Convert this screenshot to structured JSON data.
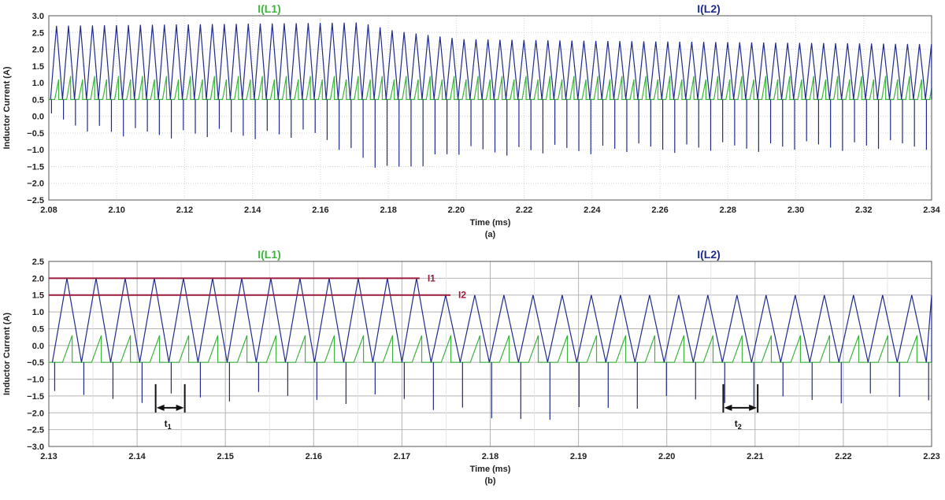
{
  "colors": {
    "L1": "#3db53d",
    "L2": "#1f2a8c",
    "threshold": "#9b1b3c",
    "grid": "#d6d6d6",
    "gridMajor": "#b5b5b5",
    "marker": "#111111"
  },
  "chart_data": [
    {
      "type": "line",
      "panel_label": "(a)",
      "xlabel": "Time (ms)",
      "ylabel": "Inductor Current (A)",
      "xlim": [
        2.08,
        2.34
      ],
      "ylim": [
        -2.5,
        3.0
      ],
      "xticks": [
        "2.08",
        "2.10",
        "2.12",
        "2.14",
        "2.16",
        "2.18",
        "2.20",
        "2.22",
        "2.24",
        "2.26",
        "2.28",
        "2.30",
        "2.32",
        "2.34"
      ],
      "yticks": [
        "3.0",
        "2.5",
        "2.0",
        "1.5",
        "1.0",
        "0.5",
        "0.0",
        "−0.5",
        "−1.0",
        "−1.5",
        "−2.0",
        "−2.5"
      ],
      "grid": "dotted",
      "legend": [
        {
          "name": "I(L1)",
          "color": "#3db53d"
        },
        {
          "name": "I(L2)",
          "color": "#1f2a8c"
        }
      ],
      "series": [
        {
          "name": "I(L1)",
          "shape": "sawtooth",
          "x_start": 2.0805,
          "period": 0.00353,
          "baseline": 0.5,
          "peak": [
            1.1,
            1.2
          ]
        },
        {
          "name": "I(L2)",
          "shape": "triangle",
          "x_start": 2.0805,
          "period": 0.00353,
          "baseline": 0.5,
          "peak_points": [
            [
              2.08,
              2.7
            ],
            [
              2.17,
              2.8
            ],
            [
              2.18,
              2.55
            ],
            [
              2.2,
              2.3
            ],
            [
              2.24,
              2.25
            ],
            [
              2.34,
              2.15
            ]
          ],
          "spike_min_points": [
            [
              2.08,
              0.1
            ],
            [
              2.1,
              -0.35
            ],
            [
              2.16,
              -0.4
            ],
            [
              2.18,
              -1.5
            ],
            [
              2.2,
              -0.9
            ],
            [
              2.26,
              -0.8
            ],
            [
              2.34,
              -0.7
            ]
          ]
        }
      ]
    },
    {
      "type": "line",
      "panel_label": "(b)",
      "xlabel": "Time (ms)",
      "ylabel": "Inductor Current (A)",
      "xlim": [
        2.13,
        2.23
      ],
      "ylim": [
        -3.0,
        2.5
      ],
      "xticks": [
        "2.13",
        "2.14",
        "2.15",
        "2.16",
        "2.17",
        "2.18",
        "2.19",
        "2.20",
        "2.21",
        "2.22",
        "2.23"
      ],
      "yticks": [
        "2.5",
        "2.0",
        "1.5",
        "1.0",
        "0.5",
        "0.0",
        "−0.5",
        "−1.0",
        "−1.5",
        "−2.0",
        "−2.5",
        "−3.0"
      ],
      "grid": "solid",
      "legend": [
        {
          "name": "I(L1)",
          "color": "#3db53d"
        },
        {
          "name": "I(L2)",
          "color": "#1f2a8c"
        }
      ],
      "series": [
        {
          "name": "I(L1)",
          "shape": "sawtooth",
          "x_start": 2.1304,
          "period": 0.0033,
          "baseline": -0.5,
          "peak": 0.3
        },
        {
          "name": "I(L2)",
          "shape": "triangle",
          "x_start": 2.1304,
          "period": 0.0033,
          "baseline": -0.5,
          "peak_before_x": 2.1735,
          "peak_high": 2.0,
          "peak_low": 1.5,
          "spike_min_points": [
            [
              2.13,
              -1.35
            ],
            [
              2.17,
              -1.4
            ],
            [
              2.18,
              -2.05
            ],
            [
              2.2,
              -1.5
            ],
            [
              2.23,
              -1.4
            ]
          ]
        }
      ],
      "annotations": [
        {
          "label": "I1",
          "y": 2.0,
          "x_from": 2.13,
          "x_to": 2.172
        },
        {
          "label": "I2",
          "y": 1.5,
          "x_from": 2.13,
          "x_to": 2.1755
        },
        {
          "label": "t",
          "subscript": "1",
          "x_from": 2.1421,
          "x_to": 2.1454,
          "y": -1.85
        },
        {
          "label": "t",
          "subscript": "2",
          "x_from": 2.2064,
          "x_to": 2.2103,
          "y": -1.85
        }
      ]
    }
  ]
}
